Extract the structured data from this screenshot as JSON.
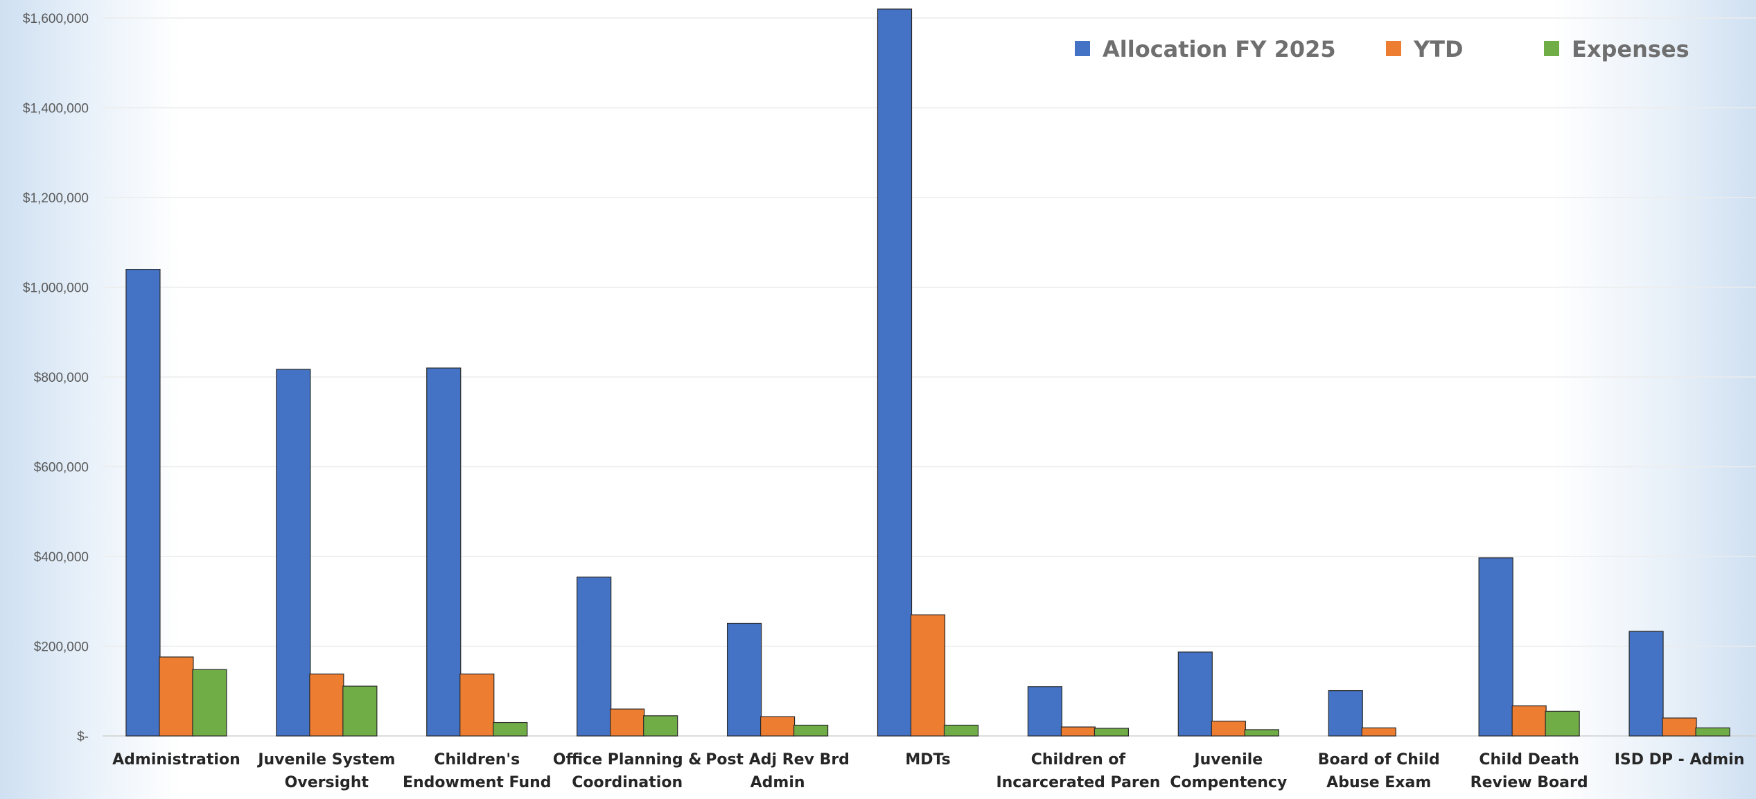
{
  "chart_data": {
    "type": "bar",
    "categories": [
      [
        "Administration"
      ],
      [
        "Juvenile System",
        "Oversight"
      ],
      [
        "Children's",
        "Endowment Fund"
      ],
      [
        "Office Planning &",
        "Coordination"
      ],
      [
        "Post Adj Rev Brd",
        "Admin"
      ],
      [
        "MDTs"
      ],
      [
        "Children of",
        "Incarcerated Paren"
      ],
      [
        "Juvenile",
        "Compentency"
      ],
      [
        "Board of Child",
        "Abuse Exam"
      ],
      [
        "Child Death",
        "Review Board"
      ],
      [
        "ISD DP - Admin"
      ]
    ],
    "series": [
      {
        "name": "Allocation FY 2025",
        "color": "#4472c4",
        "values": [
          1040000,
          817000,
          820000,
          354000,
          251000,
          1620000,
          110000,
          187000,
          101000,
          397000,
          233000
        ]
      },
      {
        "name": "YTD",
        "color": "#ed7d31",
        "values": [
          176000,
          138000,
          138000,
          60000,
          43000,
          270000,
          20000,
          33000,
          18000,
          67000,
          40000
        ]
      },
      {
        "name": "Expenses",
        "color": "#70ad47",
        "values": [
          148000,
          111000,
          30000,
          45000,
          24000,
          24000,
          17000,
          14000,
          0,
          55000,
          18000
        ]
      }
    ],
    "yticks": [
      "$-",
      "$200,000",
      "$400,000",
      "$600,000",
      "$800,000",
      "$1,000,000",
      "$1,200,000",
      "$1,400,000",
      "$1,600,000"
    ],
    "ylim": [
      0,
      1600000
    ],
    "xlabel": "",
    "ylabel": "",
    "grid": true,
    "legend_position": "top-right"
  }
}
